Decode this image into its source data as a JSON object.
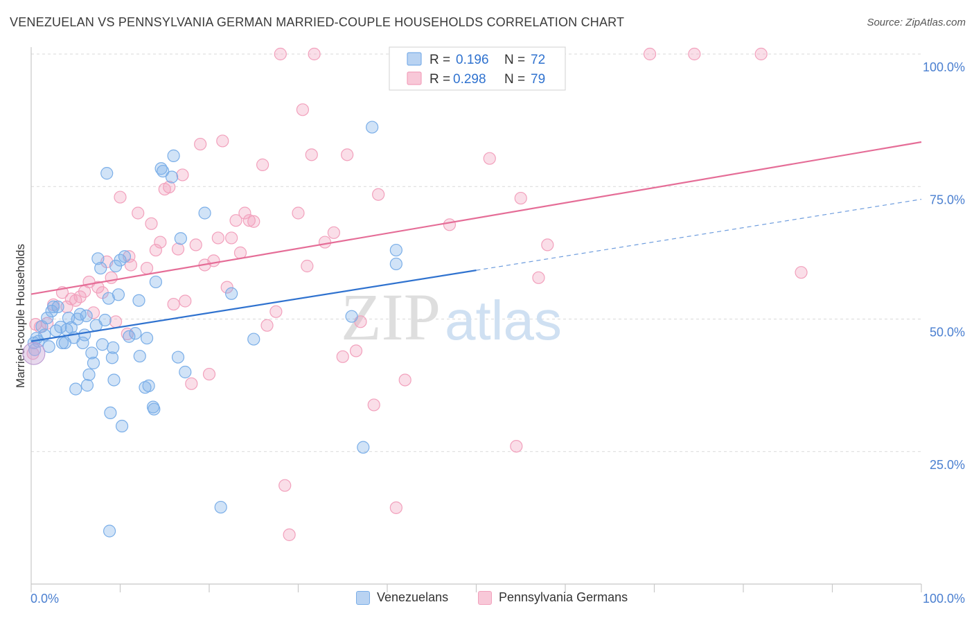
{
  "header": {
    "title": "VENEZUELAN VS PENNSYLVANIA GERMAN MARRIED-COUPLE HOUSEHOLDS CORRELATION CHART",
    "source": "Source: ZipAtlas.com"
  },
  "colors": {
    "blue": "#7aaee8",
    "blue_line": "#2f72cf",
    "pink": "#f2a0bc",
    "pink_line": "#e56d97",
    "grid": "#d9d9d9",
    "tick_text": "#4a7fd0"
  },
  "watermark": {
    "part1": "ZIP",
    "part2": "atlas"
  },
  "stats_legend": {
    "rows": [
      {
        "r_label": "R =",
        "r_value": "0.196",
        "n_label": "N =",
        "n_value": "72"
      },
      {
        "r_label": "R =",
        "r_value": "0.298",
        "n_label": "N =",
        "n_value": "79"
      }
    ]
  },
  "bottom_legend": [
    "Venezuelans",
    "Pennsylvania Germans"
  ],
  "chart_data": {
    "type": "scatter",
    "title": "VENEZUELAN VS PENNSYLVANIA GERMAN MARRIED-COUPLE HOUSEHOLDS CORRELATION CHART",
    "xlabel": "",
    "ylabel": "Married-couple Households",
    "xlim": [
      0,
      100
    ],
    "ylim": [
      0,
      100
    ],
    "x_tick_labels": [
      "0.0%",
      "100.0%"
    ],
    "y_tick_labels": [
      "25.0%",
      "50.0%",
      "75.0%",
      "100.0%"
    ],
    "y_ticks": [
      25,
      50,
      75,
      100
    ],
    "grid": true,
    "legend_position": "top-center",
    "series": [
      {
        "name": "Venezuelans",
        "R": 0.196,
        "N": 72,
        "trend": {
          "x0": 0,
          "y0": 45.8,
          "x1": 50,
          "y1": 59.2,
          "dashed_to_x": 100,
          "dashed_to_y": 72.6
        },
        "points": [
          [
            0.3,
            45.5
          ],
          [
            0.4,
            44.2
          ],
          [
            0.6,
            46.4
          ],
          [
            0.8,
            45.8
          ],
          [
            1.2,
            48.6
          ],
          [
            1.5,
            47.0
          ],
          [
            1.8,
            50.2
          ],
          [
            2.0,
            44.8
          ],
          [
            2.3,
            51.5
          ],
          [
            2.5,
            52.3
          ],
          [
            2.8,
            47.8
          ],
          [
            3.0,
            52.3
          ],
          [
            3.3,
            48.5
          ],
          [
            3.5,
            45.5
          ],
          [
            3.8,
            45.5
          ],
          [
            4.0,
            48.0
          ],
          [
            4.2,
            50.2
          ],
          [
            4.5,
            48.4
          ],
          [
            4.8,
            46.5
          ],
          [
            5.0,
            36.8
          ],
          [
            5.2,
            50.0
          ],
          [
            5.5,
            50.9
          ],
          [
            5.8,
            45.5
          ],
          [
            6.0,
            47.0
          ],
          [
            6.3,
            37.5
          ],
          [
            6.5,
            39.5
          ],
          [
            6.8,
            43.6
          ],
          [
            7.0,
            41.7
          ],
          [
            7.3,
            48.8
          ],
          [
            7.5,
            61.4
          ],
          [
            7.8,
            59.6
          ],
          [
            8.0,
            45.2
          ],
          [
            8.3,
            49.8
          ],
          [
            8.5,
            77.5
          ],
          [
            8.7,
            53.9
          ],
          [
            8.9,
            32.3
          ],
          [
            9.2,
            44.6
          ],
          [
            9.5,
            60.0
          ],
          [
            8.8,
            10.0
          ],
          [
            9.8,
            54.6
          ],
          [
            10.0,
            61.1
          ],
          [
            9.1,
            42.7
          ],
          [
            10.5,
            61.8
          ],
          [
            11.0,
            46.7
          ],
          [
            10.2,
            29.8
          ],
          [
            12.2,
            43.0
          ],
          [
            11.7,
            47.3
          ],
          [
            12.1,
            53.5
          ],
          [
            13.0,
            46.4
          ],
          [
            12.8,
            37.1
          ],
          [
            13.2,
            37.4
          ],
          [
            13.7,
            33.4
          ],
          [
            13.8,
            33.0
          ],
          [
            14.0,
            57.0
          ],
          [
            14.8,
            77.9
          ],
          [
            14.6,
            78.4
          ],
          [
            15.8,
            76.8
          ],
          [
            16.0,
            80.8
          ],
          [
            16.8,
            65.2
          ],
          [
            16.5,
            42.8
          ],
          [
            17.3,
            40.0
          ],
          [
            19.5,
            70.0
          ],
          [
            21.3,
            14.5
          ],
          [
            22.5,
            54.8
          ],
          [
            25.0,
            46.2
          ],
          [
            36.0,
            50.5
          ],
          [
            37.3,
            25.8
          ],
          [
            38.3,
            86.2
          ],
          [
            41.0,
            63.0
          ],
          [
            41.0,
            60.4
          ],
          [
            9.3,
            38.5
          ],
          [
            6.2,
            50.6
          ]
        ]
      },
      {
        "name": "Pennsylvania Germans",
        "R": 0.298,
        "N": 79,
        "trend": {
          "x0": 0,
          "y0": 54.7,
          "x1": 100,
          "y1": 83.4
        },
        "points": [
          [
            0.2,
            43.5
          ],
          [
            0.5,
            49.0
          ],
          [
            1.0,
            48.5
          ],
          [
            1.8,
            49.2
          ],
          [
            2.5,
            52.7
          ],
          [
            3.5,
            55.0
          ],
          [
            4.0,
            52.3
          ],
          [
            4.5,
            53.8
          ],
          [
            5.0,
            53.5
          ],
          [
            5.5,
            54.2
          ],
          [
            6.0,
            55.2
          ],
          [
            6.5,
            57.0
          ],
          [
            7.0,
            51.2
          ],
          [
            7.5,
            56.0
          ],
          [
            8.0,
            55.0
          ],
          [
            8.5,
            60.8
          ],
          [
            9.0,
            57.8
          ],
          [
            9.5,
            49.5
          ],
          [
            10.0,
            73.0
          ],
          [
            10.8,
            47.2
          ],
          [
            11.0,
            61.8
          ],
          [
            11.2,
            60.2
          ],
          [
            12.0,
            70.0
          ],
          [
            13.0,
            59.6
          ],
          [
            13.5,
            68.0
          ],
          [
            14.0,
            63.0
          ],
          [
            14.5,
            64.5
          ],
          [
            15.0,
            74.5
          ],
          [
            15.5,
            74.9
          ],
          [
            16.0,
            52.8
          ],
          [
            16.5,
            63.2
          ],
          [
            17.0,
            77.2
          ],
          [
            17.3,
            53.4
          ],
          [
            18.0,
            37.8
          ],
          [
            18.5,
            64.0
          ],
          [
            19.0,
            83.0
          ],
          [
            19.5,
            60.2
          ],
          [
            20.0,
            39.6
          ],
          [
            20.5,
            61.0
          ],
          [
            21.0,
            65.3
          ],
          [
            21.5,
            83.6
          ],
          [
            22.0,
            56.0
          ],
          [
            22.5,
            65.3
          ],
          [
            23.0,
            68.6
          ],
          [
            23.5,
            62.5
          ],
          [
            24.0,
            70.0
          ],
          [
            24.5,
            68.6
          ],
          [
            25.0,
            68.4
          ],
          [
            26.0,
            79.1
          ],
          [
            26.5,
            48.8
          ],
          [
            27.5,
            51.4
          ],
          [
            28.0,
            100.0
          ],
          [
            28.5,
            18.6
          ],
          [
            29.0,
            9.3
          ],
          [
            30.0,
            70.0
          ],
          [
            30.5,
            89.5
          ],
          [
            31.0,
            60.0
          ],
          [
            31.5,
            81.0
          ],
          [
            31.8,
            100.0
          ],
          [
            33.0,
            64.5
          ],
          [
            34.0,
            66.3
          ],
          [
            35.0,
            42.9
          ],
          [
            35.5,
            81.0
          ],
          [
            36.5,
            44.0
          ],
          [
            37.0,
            49.5
          ],
          [
            38.5,
            33.8
          ],
          [
            39.0,
            73.5
          ],
          [
            41.0,
            14.4
          ],
          [
            42.0,
            38.5
          ],
          [
            47.0,
            67.8
          ],
          [
            51.5,
            80.3
          ],
          [
            54.5,
            26.0
          ],
          [
            55.0,
            72.8
          ],
          [
            57.0,
            57.8
          ],
          [
            58.0,
            64.0
          ],
          [
            69.5,
            100.0
          ],
          [
            74.5,
            100.0
          ],
          [
            82.0,
            100.0
          ],
          [
            86.5,
            58.8
          ]
        ]
      }
    ]
  }
}
